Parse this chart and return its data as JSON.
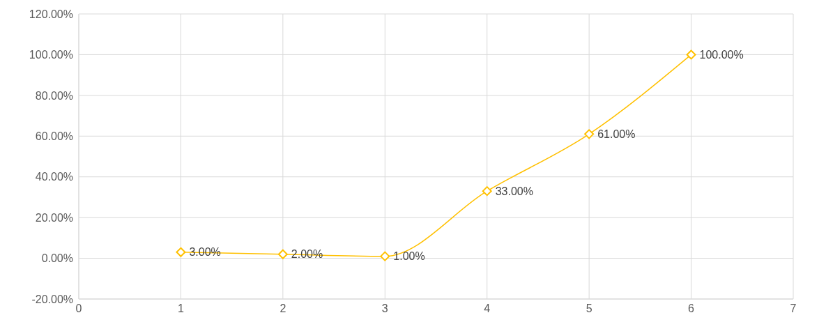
{
  "chart_data": {
    "type": "line",
    "x": [
      1,
      2,
      3,
      4,
      5,
      6
    ],
    "series": [
      {
        "color": "#ffc000",
        "values": [
          3,
          2,
          1,
          33,
          61,
          100
        ],
        "value_labels": [
          "3.00%",
          "2.00%",
          "1.00%",
          "33.00%",
          "61.00%",
          "100.00%"
        ]
      }
    ],
    "xlim": [
      0,
      7
    ],
    "xticks": [
      0,
      1,
      2,
      3,
      4,
      5,
      6,
      7
    ],
    "ylim": [
      -20,
      120
    ],
    "yticks": [
      {
        "value": -20,
        "label": "-20.00%"
      },
      {
        "value": 0,
        "label": "0.00%"
      },
      {
        "value": 20,
        "label": "20.00%"
      },
      {
        "value": 40,
        "label": "40.00%"
      },
      {
        "value": 60,
        "label": "60.00%"
      },
      {
        "value": 80,
        "label": "80.00%"
      },
      {
        "value": 100,
        "label": "100.00%"
      },
      {
        "value": 120,
        "label": "120.00%"
      }
    ],
    "grid": true,
    "marker": "diamond",
    "line_style": "solid",
    "legend": false
  }
}
